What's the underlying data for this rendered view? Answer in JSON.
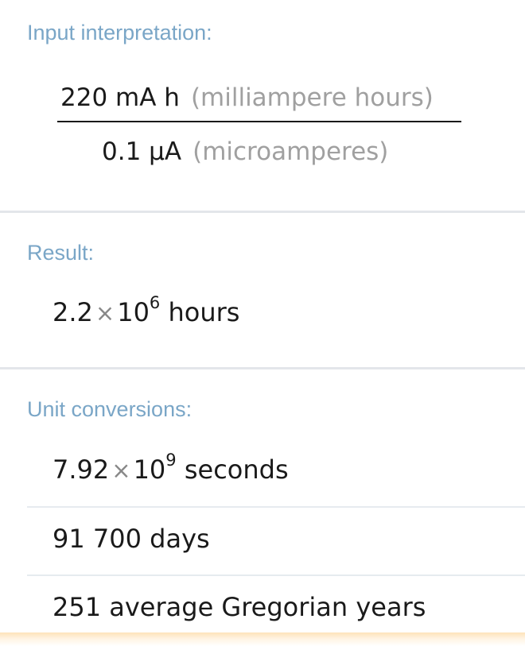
{
  "input_interpretation": {
    "title": "Input interpretation:",
    "numerator_value": "220 mA h",
    "numerator_unit": "(milliampere hours)",
    "denominator_value": "0.1 μA",
    "denominator_unit": "(microamperes)"
  },
  "result": {
    "title": "Result:",
    "mantissa": "2.2",
    "times": "×",
    "base": "10",
    "exponent": "6",
    "unit": "hours"
  },
  "unit_conversions": {
    "title": "Unit conversions:",
    "seconds": {
      "mantissa": "7.92",
      "times": "×",
      "base": "10",
      "exponent": "9",
      "unit": "seconds"
    },
    "days": "91 700 days",
    "years": "251 average Gregorian years"
  }
}
